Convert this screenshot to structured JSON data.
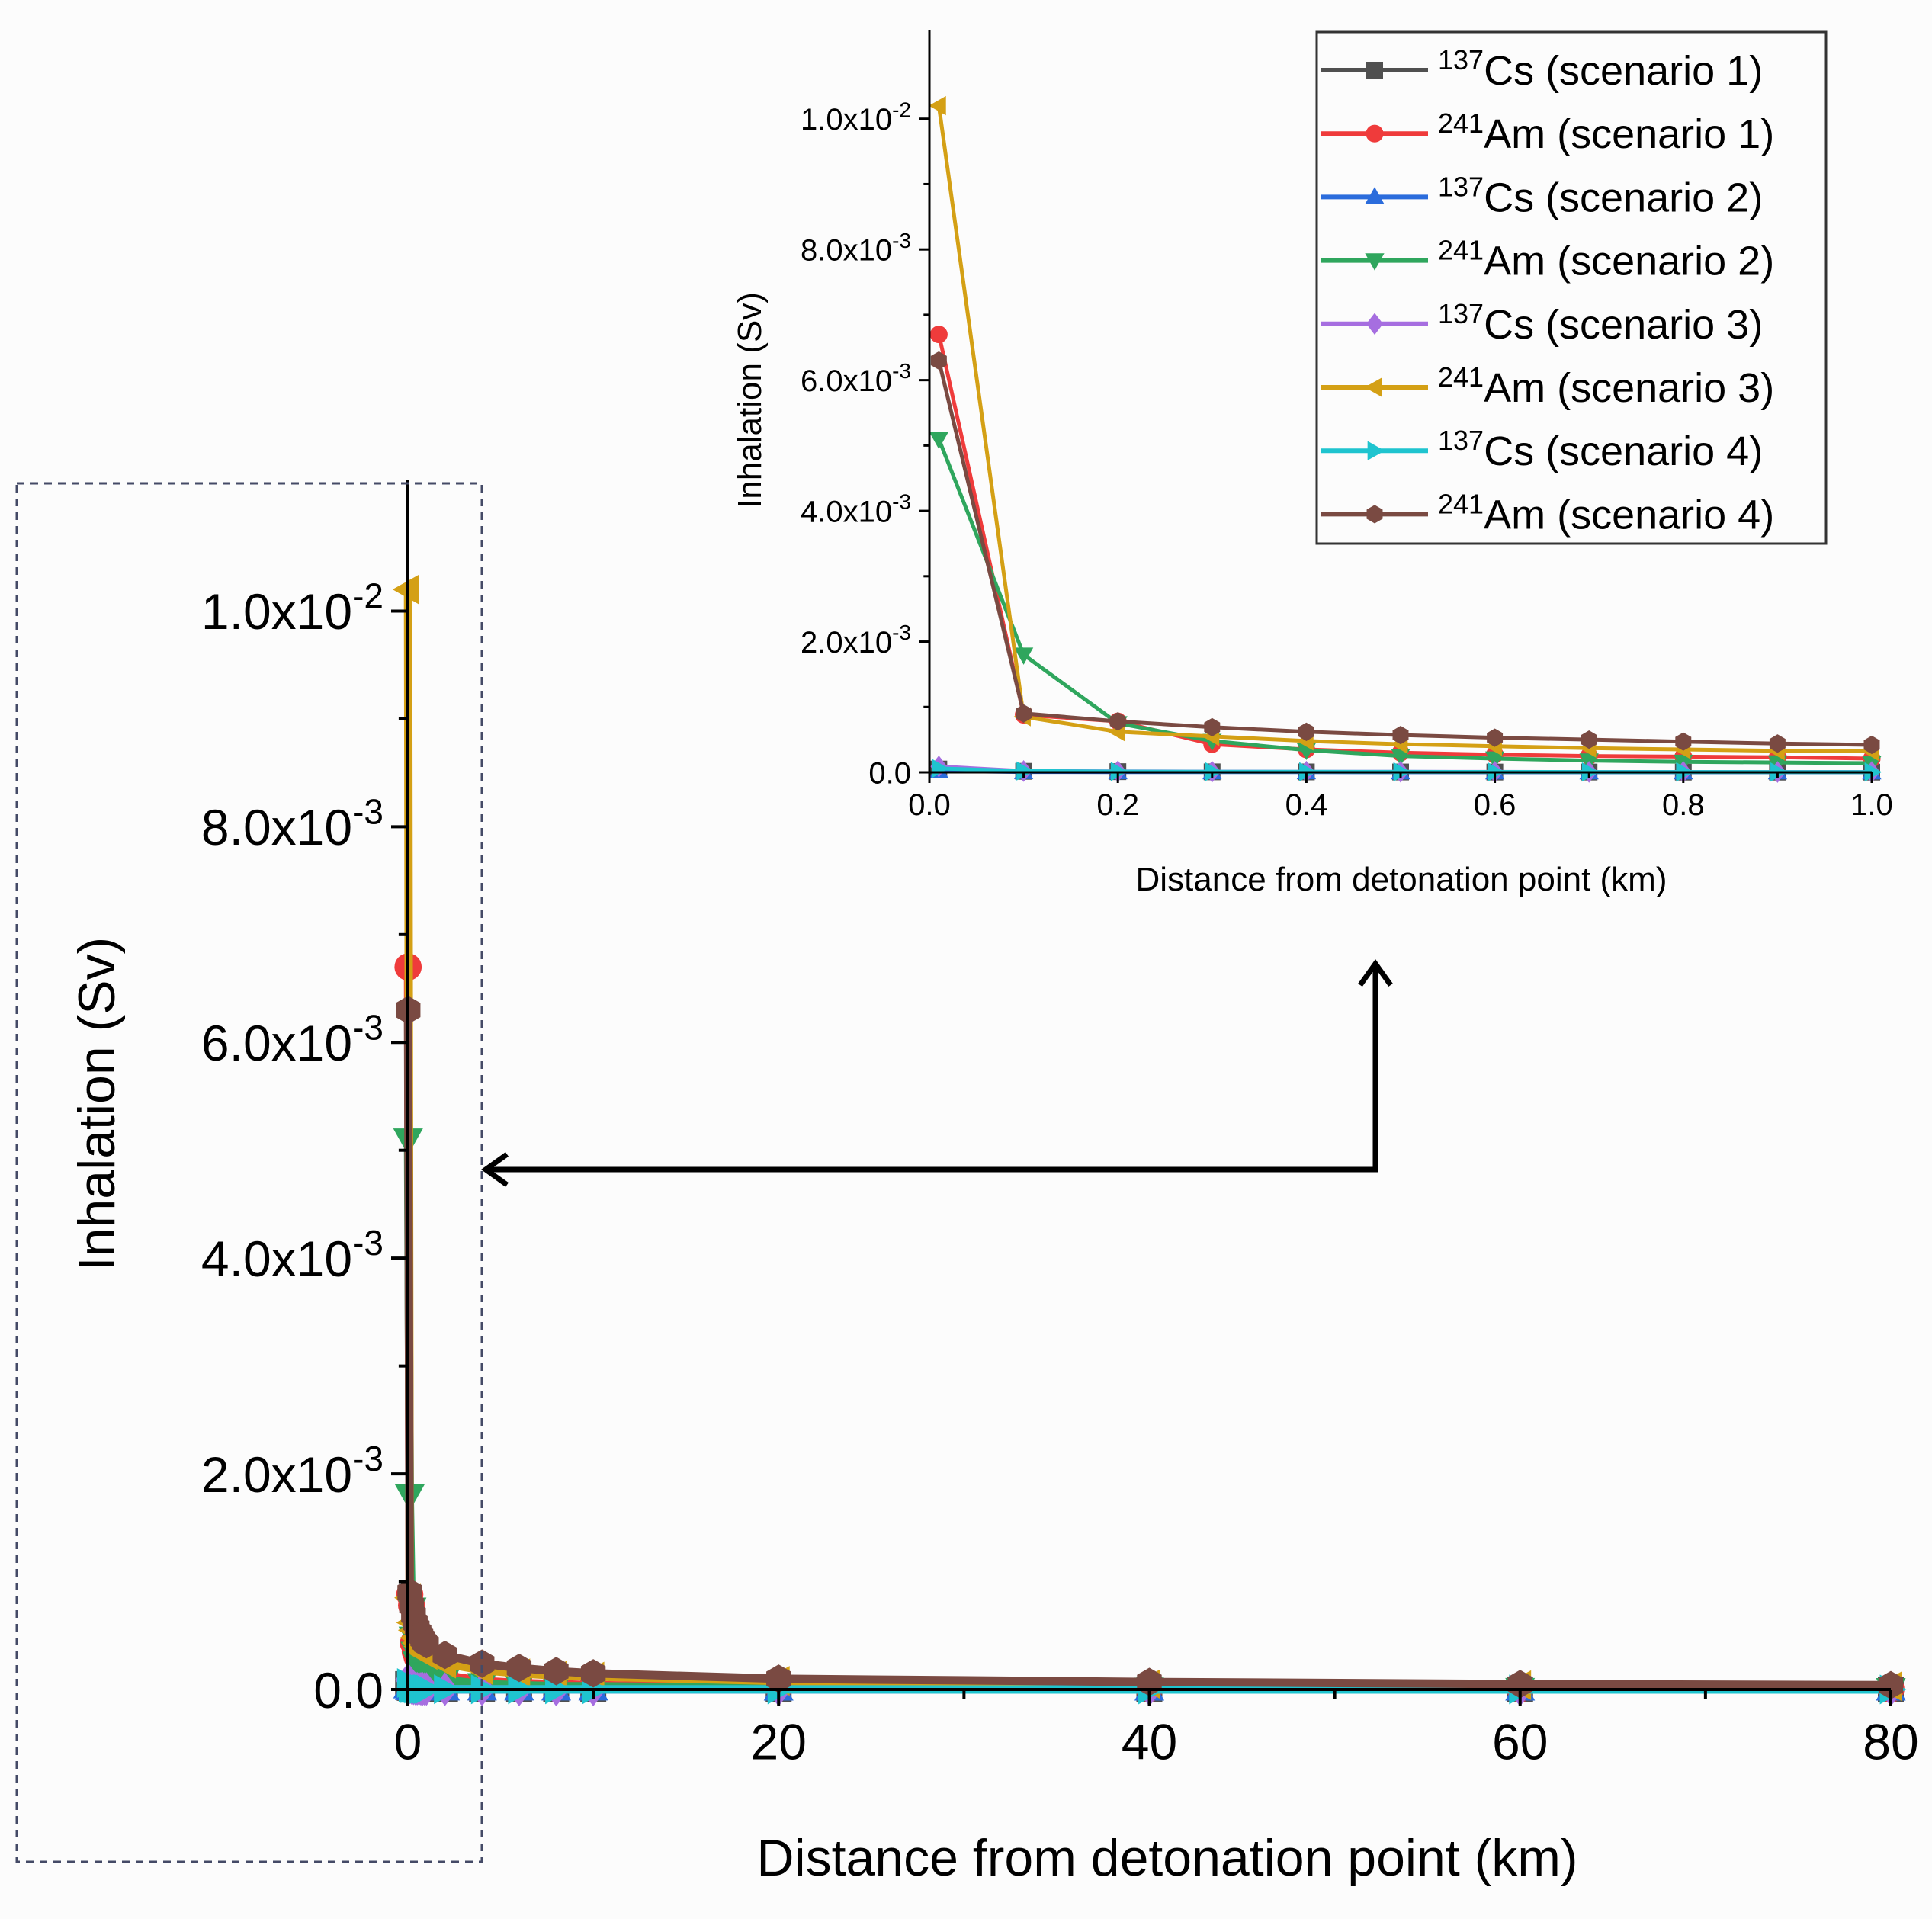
{
  "figure": {
    "sup_prefix": "x10"
  },
  "chart_data": [
    {
      "id": "main",
      "type": "line",
      "xlabel": "Distance from detonation point (km)",
      "ylabel": "Inhalation (Sv)",
      "xlim": [
        0,
        80
      ],
      "ylim": [
        0,
        0.011
      ],
      "x_ticks": [
        0,
        20,
        40,
        60,
        80
      ],
      "x_tick_labels": [
        "0",
        "20",
        "40",
        "60",
        "80"
      ],
      "y_ticks": [
        0,
        0.002,
        0.004,
        0.006,
        0.008,
        0.01
      ],
      "y_tick_labels": [
        {
          "mant": "0.0",
          "exp": ""
        },
        {
          "mant": "2.0x10",
          "exp": "-3"
        },
        {
          "mant": "4.0x10",
          "exp": "-3"
        },
        {
          "mant": "6.0x10",
          "exp": "-3"
        },
        {
          "mant": "8.0x10",
          "exp": "-3"
        },
        {
          "mant": "1.0x10",
          "exp": "-2"
        }
      ],
      "x": [
        0.01,
        0.1,
        0.2,
        0.3,
        0.4,
        0.5,
        0.6,
        0.7,
        0.8,
        0.9,
        1,
        2,
        4,
        6,
        8,
        10,
        20,
        40,
        60,
        80
      ],
      "series": [
        {
          "name": "137Cs (scenario 1)",
          "values": [
            5e-05,
            1.5e-05,
            1e-05,
            7e-06,
            6e-06,
            5e-06,
            4e-06,
            4e-06,
            3e-06,
            3e-06,
            3e-06,
            2e-06,
            1e-06,
            1e-06,
            1e-06,
            1e-06,
            5e-07,
            3e-07,
            2e-07,
            1e-07
          ]
        },
        {
          "name": "241Am (scenario 1)",
          "values": [
            0.0067,
            0.00088,
            0.00078,
            0.00043,
            0.00035,
            0.0003,
            0.00027,
            0.00025,
            0.00024,
            0.00023,
            0.00021,
            0.00013,
            8e-05,
            6e-05,
            5e-05,
            4e-05,
            2e-05,
            1e-05,
            8e-06,
            6e-06
          ]
        },
        {
          "name": "137Cs (scenario 2)",
          "values": [
            2e-05,
            5e-06,
            3e-06,
            2e-06,
            2e-06,
            1.5e-06,
            1.2e-06,
            1e-06,
            1e-06,
            1e-06,
            9e-07,
            5e-07,
            3e-07,
            2e-07,
            2e-07,
            1e-07,
            8e-08,
            5e-08,
            3e-08,
            2e-08
          ]
        },
        {
          "name": "241Am (scenario 2)",
          "values": [
            0.0051,
            0.0018,
            0.00075,
            0.00048,
            0.00034,
            0.00025,
            0.00021,
            0.00018,
            0.00016,
            0.00015,
            0.00014,
            9e-05,
            5e-05,
            4e-05,
            3e-05,
            3e-05,
            1.5e-05,
            8e-06,
            5e-06,
            4e-06
          ]
        },
        {
          "name": "137Cs (scenario 3)",
          "values": [
            9e-05,
            2e-05,
            1.5e-05,
            1e-05,
            9e-06,
            8e-06,
            7e-06,
            6e-06,
            6e-06,
            5e-06,
            5e-06,
            3e-06,
            2e-06,
            1e-06,
            1e-06,
            1e-06,
            6e-07,
            3e-07,
            2e-07,
            1e-07
          ]
        },
        {
          "name": "241Am (scenario 3)",
          "values": [
            0.0102,
            0.00085,
            0.00062,
            0.00055,
            0.00048,
            0.00043,
            0.0004,
            0.00037,
            0.00035,
            0.00033,
            0.00032,
            0.00024,
            0.00018,
            0.00015,
            0.00013,
            0.00012,
            8e-05,
            5e-05,
            4e-05,
            3e-05
          ]
        },
        {
          "name": "137Cs (scenario 4)",
          "values": [
            6e-05,
            2e-05,
            1.2e-05,
            9e-06,
            8e-06,
            7e-06,
            6e-06,
            5e-06,
            5e-06,
            4e-06,
            4e-06,
            2e-06,
            1e-06,
            1e-06,
            1e-06,
            1e-06,
            5e-07,
            3e-07,
            2e-07,
            1e-07
          ]
        },
        {
          "name": "241Am (scenario 4)",
          "values": [
            0.0063,
            0.0009,
            0.00078,
            0.00069,
            0.00062,
            0.00057,
            0.00053,
            0.0005,
            0.00047,
            0.00044,
            0.00042,
            0.00032,
            0.00024,
            0.0002,
            0.00017,
            0.00015,
            0.0001,
            7e-05,
            5e-05,
            4e-05
          ]
        }
      ]
    },
    {
      "id": "inset",
      "type": "line",
      "xlabel": "Distance from detonation point (km)",
      "ylabel": "Inhalation (Sv)",
      "xlim": [
        0,
        1
      ],
      "ylim": [
        0,
        0.011
      ],
      "x_ticks": [
        0,
        0.2,
        0.4,
        0.6,
        0.8,
        1.0
      ],
      "x_tick_labels": [
        "0.0",
        "0.2",
        "0.4",
        "0.6",
        "0.8",
        "1.0"
      ],
      "y_ticks": [
        0,
        0.002,
        0.004,
        0.006,
        0.008,
        0.01
      ],
      "y_tick_labels": [
        {
          "mant": "0.0",
          "exp": ""
        },
        {
          "mant": "2.0x10",
          "exp": "-3"
        },
        {
          "mant": "4.0x10",
          "exp": "-3"
        },
        {
          "mant": "6.0x10",
          "exp": "-3"
        },
        {
          "mant": "8.0x10",
          "exp": "-3"
        },
        {
          "mant": "1.0x10",
          "exp": "-2"
        }
      ],
      "x": [
        0.01,
        0.1,
        0.2,
        0.3,
        0.4,
        0.5,
        0.6,
        0.7,
        0.8,
        0.9,
        1.0
      ]
    }
  ],
  "legend": {
    "placement": "top-right",
    "entries": [
      {
        "sup": "137",
        "elem": "Cs",
        "rest": " (scenario 1)",
        "color": "#505050",
        "marker": "square"
      },
      {
        "sup": "241",
        "elem": "Am",
        "rest": " (scenario 1)",
        "color": "#ef3b3b",
        "marker": "circle"
      },
      {
        "sup": "137",
        "elem": "Cs",
        "rest": " (scenario 2)",
        "color": "#2b6cdc",
        "marker": "triangle-up"
      },
      {
        "sup": "241",
        "elem": "Am",
        "rest": " (scenario 2)",
        "color": "#2fa65d",
        "marker": "triangle-down"
      },
      {
        "sup": "137",
        "elem": "Cs",
        "rest": " (scenario 3)",
        "color": "#a66ee0",
        "marker": "diamond"
      },
      {
        "sup": "241",
        "elem": "Am",
        "rest": " (scenario 3)",
        "color": "#d4a015",
        "marker": "triangle-left"
      },
      {
        "sup": "137",
        "elem": "Cs",
        "rest": " (scenario 4)",
        "color": "#1fc4cf",
        "marker": "triangle-right"
      },
      {
        "sup": "241",
        "elem": "Am",
        "rest": " (scenario 4)",
        "color": "#7a4a42",
        "marker": "hexagon"
      }
    ]
  }
}
